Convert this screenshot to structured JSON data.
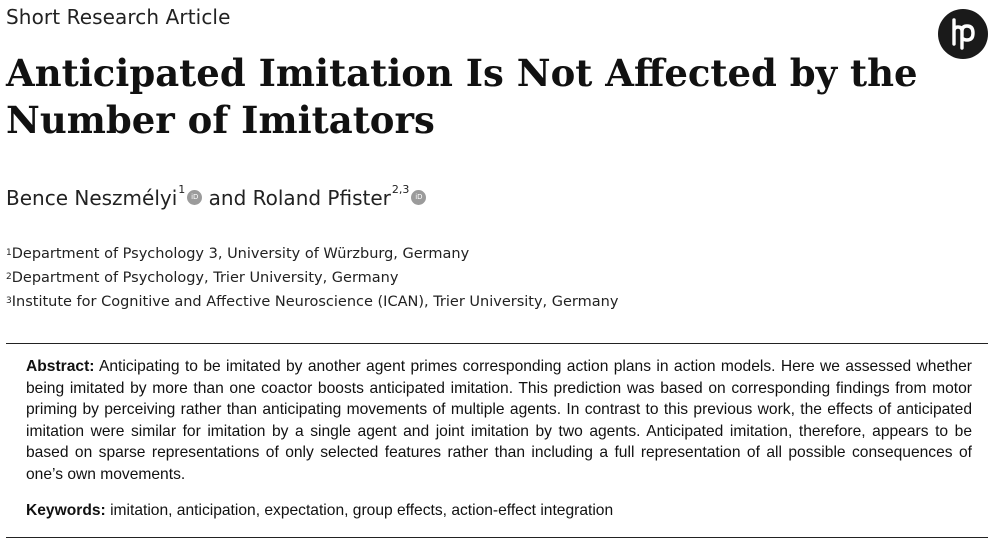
{
  "header": {
    "article_type": "Short Research Article",
    "logo_icon": "hogrefe-logo-icon"
  },
  "title": {
    "line1": "Anticipated Imitation Is Not Affected by the",
    "line2": "Number of Imitators"
  },
  "authors": {
    "author1": {
      "name": "Bence Neszmélyi",
      "sup": "1",
      "orcid_icon": "orcid-icon"
    },
    "connector": "and",
    "author2": {
      "name": "Roland Pfister",
      "sup": "2,3",
      "orcid_icon": "orcid-icon"
    },
    "orcid_glyph": "iD"
  },
  "affiliations": [
    {
      "sup": "1",
      "text": "Department of Psychology 3, University of Würzburg, Germany"
    },
    {
      "sup": "2",
      "text": "Department of Psychology, Trier University, Germany"
    },
    {
      "sup": "3",
      "text": "Institute for Cognitive and Affective Neuroscience (ICAN), Trier University, Germany"
    }
  ],
  "abstract": {
    "label": "Abstract:",
    "text": "Anticipating to be imitated by another agent primes corresponding action plans in action models. Here we assessed whether being imitated by more than one coactor boosts anticipated imitation. This prediction was based on corresponding findings from motor priming by perceiving rather than anticipating movements of multiple agents. In contrast to this previous work, the effects of anticipated imitation were similar for imitation by a single agent and joint imitation by two agents. Anticipated imitation, therefore, appears to be based on sparse representations of only selected features rather than including a full representation of all possible consequences of one’s own movements."
  },
  "keywords": {
    "label": "Keywords:",
    "text": "imitation, anticipation, expectation, group effects, action-effect integration"
  },
  "colors": {
    "text": "#111111",
    "logo": "#1a1a1a",
    "orcid_badge": "#9b9b9b",
    "rule": "#222222"
  }
}
